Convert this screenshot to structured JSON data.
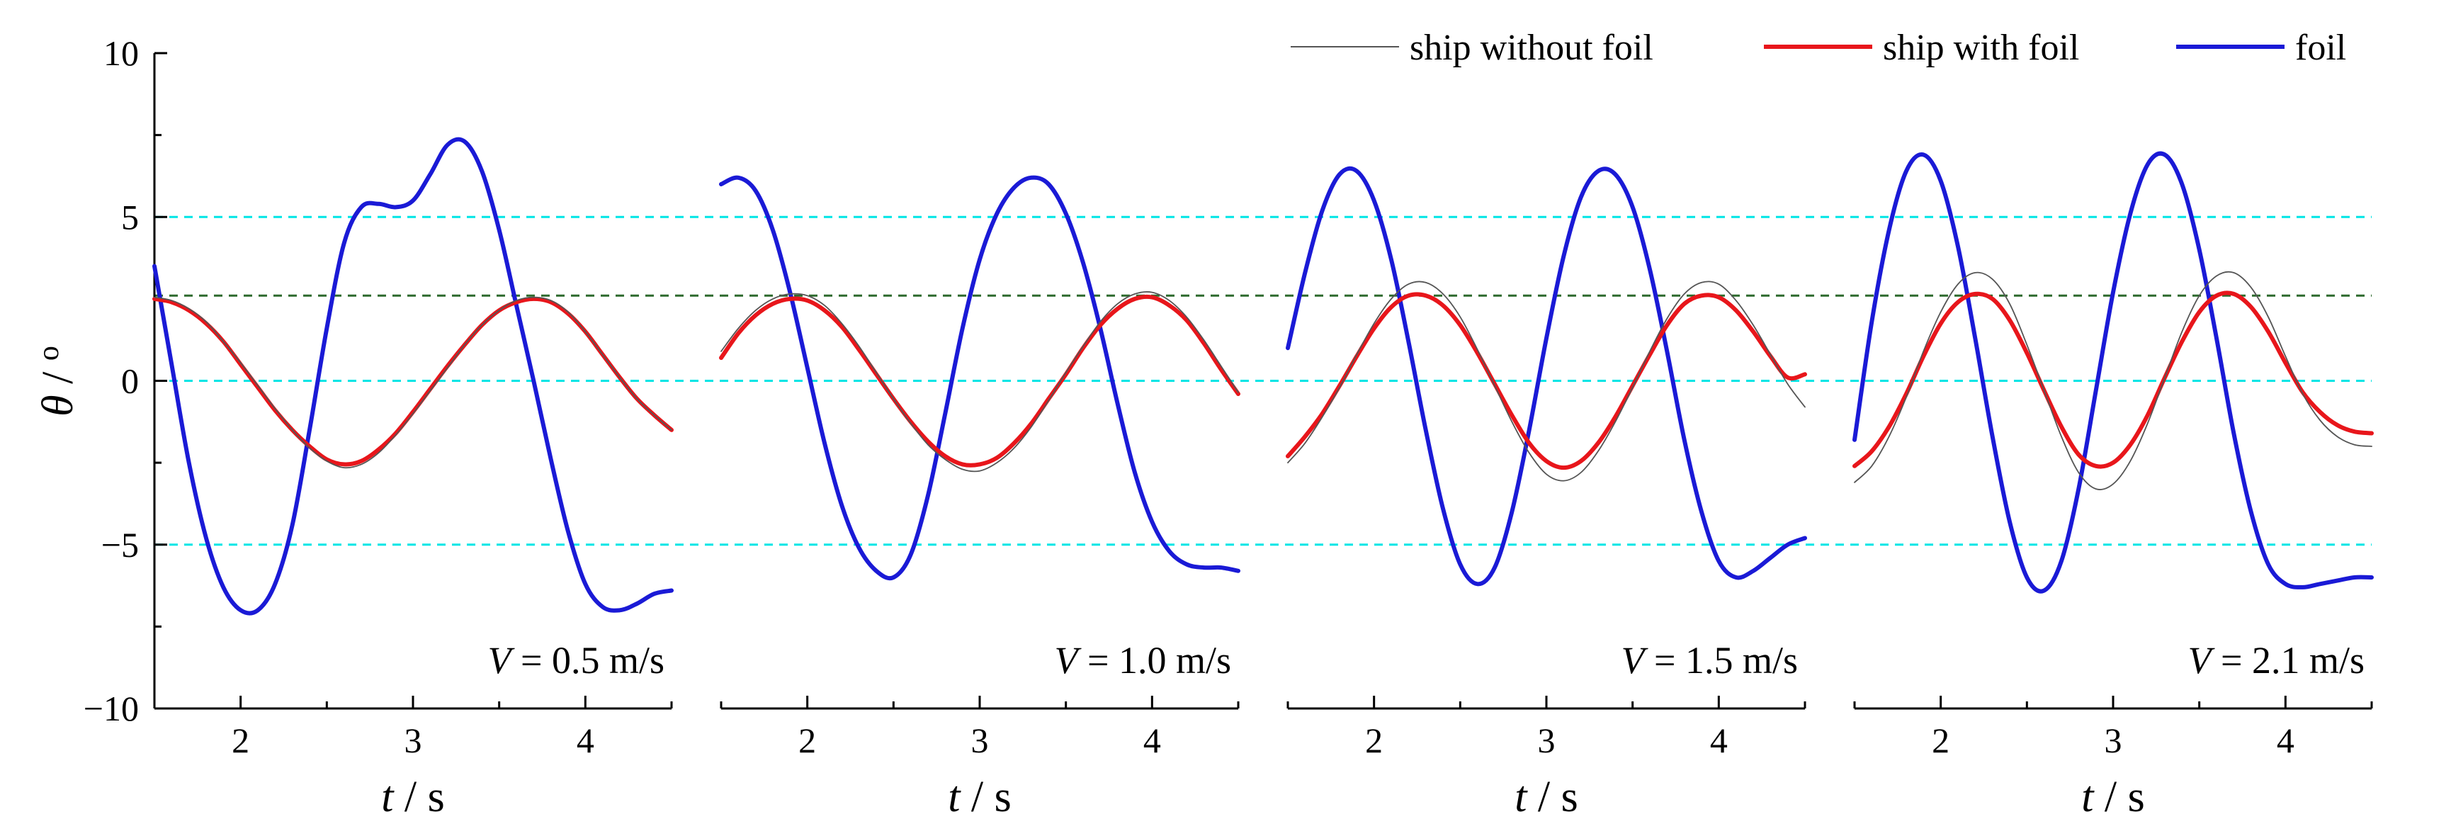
{
  "chart_data": {
    "type": "line",
    "ylabel": {
      "symbol": "θ",
      "unit": "o"
    },
    "xlabel": {
      "symbol": "t",
      "unit": "s"
    },
    "ylim": [
      -10,
      10
    ],
    "yticks": [
      {
        "value": 10,
        "label": "10"
      },
      {
        "value": 5,
        "label": "5"
      },
      {
        "value": 0,
        "label": "0"
      },
      {
        "value": -5,
        "label": "−5"
      },
      {
        "value": -10,
        "label": "−10"
      }
    ],
    "xticks": [
      {
        "value": 2,
        "label": "2"
      },
      {
        "value": 3,
        "label": "3"
      },
      {
        "value": 4,
        "label": "4"
      }
    ],
    "xlim": [
      1.5,
      4.5
    ],
    "reference_lines": [
      {
        "y": 5,
        "color": "#00e5e5",
        "style": "dashed"
      },
      {
        "y": 0,
        "color": "#00e5e5",
        "style": "dashed"
      },
      {
        "y": -5,
        "color": "#00e5e5",
        "style": "dashed"
      },
      {
        "y": 2.6,
        "color": "#2d6a2d",
        "style": "dashed"
      }
    ],
    "legend": {
      "position": "top-right",
      "entries": [
        {
          "label": "ship without foil",
          "color": "#555555"
        },
        {
          "label": "ship with foil",
          "color": "#e8161b"
        },
        {
          "label": "foil",
          "color": "#1a1ad6"
        }
      ]
    },
    "panels": [
      {
        "speed_label": {
          "var": "V",
          "rest": " = 0.5 m/s"
        },
        "series": [
          {
            "name": "ship without foil",
            "color": "#555555",
            "x": [
              1.5,
              1.6,
              1.7,
              1.8,
              1.9,
              2.0,
              2.1,
              2.2,
              2.3,
              2.4,
              2.5,
              2.6,
              2.7,
              2.8,
              2.9,
              3.0,
              3.1,
              3.2,
              3.3,
              3.4,
              3.5,
              3.6,
              3.7,
              3.8,
              3.9,
              4.0,
              4.1,
              4.2,
              4.3,
              4.4,
              4.5
            ],
            "y": [
              2.55,
              2.45,
              2.2,
              1.8,
              1.2,
              0.55,
              -0.15,
              -0.85,
              -1.5,
              -2.05,
              -2.45,
              -2.65,
              -2.55,
              -2.2,
              -1.65,
              -1.0,
              -0.3,
              0.4,
              1.1,
              1.7,
              2.15,
              2.45,
              2.55,
              2.45,
              2.1,
              1.5,
              0.8,
              0.1,
              -0.55,
              -1.05,
              -1.5
            ]
          },
          {
            "name": "ship with foil",
            "color": "#e8161b",
            "x": [
              1.5,
              1.6,
              1.7,
              1.8,
              1.9,
              2.0,
              2.1,
              2.2,
              2.3,
              2.4,
              2.5,
              2.6,
              2.7,
              2.8,
              2.9,
              3.0,
              3.1,
              3.2,
              3.3,
              3.4,
              3.5,
              3.6,
              3.7,
              3.8,
              3.9,
              4.0,
              4.1,
              4.2,
              4.3,
              4.4,
              4.5
            ],
            "y": [
              2.5,
              2.4,
              2.15,
              1.75,
              1.2,
              0.5,
              -0.2,
              -0.9,
              -1.5,
              -2.0,
              -2.4,
              -2.55,
              -2.45,
              -2.1,
              -1.6,
              -0.95,
              -0.25,
              0.45,
              1.1,
              1.7,
              2.15,
              2.4,
              2.5,
              2.4,
              2.05,
              1.5,
              0.8,
              0.1,
              -0.55,
              -1.05,
              -1.5
            ]
          },
          {
            "name": "foil",
            "color": "#1a1ad6",
            "x": [
              1.5,
              1.6,
              1.7,
              1.8,
              1.9,
              2.0,
              2.1,
              2.2,
              2.3,
              2.4,
              2.5,
              2.6,
              2.7,
              2.8,
              2.9,
              3.0,
              3.1,
              3.2,
              3.3,
              3.4,
              3.5,
              3.6,
              3.7,
              3.8,
              3.9,
              4.0,
              4.1,
              4.2,
              4.3,
              4.4,
              4.5
            ],
            "y": [
              3.5,
              0.5,
              -2.5,
              -4.8,
              -6.3,
              -7.0,
              -7.0,
              -6.2,
              -4.4,
              -1.5,
              1.6,
              4.2,
              5.3,
              5.4,
              5.3,
              5.5,
              6.3,
              7.2,
              7.3,
              6.4,
              4.6,
              2.3,
              0.0,
              -2.4,
              -4.6,
              -6.2,
              -6.9,
              -7.0,
              -6.8,
              -6.5,
              -6.4
            ]
          }
        ]
      },
      {
        "speed_label": {
          "var": "V",
          "rest": " = 1.0 m/s"
        },
        "series": [
          {
            "name": "ship without foil",
            "color": "#555555",
            "x": [
              1.5,
              1.6,
              1.7,
              1.8,
              1.9,
              2.0,
              2.1,
              2.2,
              2.3,
              2.4,
              2.5,
              2.6,
              2.7,
              2.8,
              2.9,
              3.0,
              3.1,
              3.2,
              3.3,
              3.4,
              3.5,
              3.6,
              3.7,
              3.8,
              3.9,
              4.0,
              4.1,
              4.2,
              4.3,
              4.4,
              4.5
            ],
            "y": [
              0.9,
              1.6,
              2.15,
              2.5,
              2.65,
              2.6,
              2.3,
              1.75,
              1.05,
              0.25,
              -0.55,
              -1.3,
              -1.95,
              -2.4,
              -2.7,
              -2.75,
              -2.5,
              -2.05,
              -1.4,
              -0.6,
              0.25,
              1.05,
              1.8,
              2.35,
              2.65,
              2.7,
              2.45,
              1.95,
              1.25,
              0.45,
              -0.35
            ]
          },
          {
            "name": "ship with foil",
            "color": "#e8161b",
            "x": [
              1.5,
              1.6,
              1.7,
              1.8,
              1.9,
              2.0,
              2.1,
              2.2,
              2.3,
              2.4,
              2.5,
              2.6,
              2.7,
              2.8,
              2.9,
              3.0,
              3.1,
              3.2,
              3.3,
              3.4,
              3.5,
              3.6,
              3.7,
              3.8,
              3.9,
              4.0,
              4.1,
              4.2,
              4.3,
              4.4,
              4.5
            ],
            "y": [
              0.7,
              1.45,
              2.0,
              2.35,
              2.5,
              2.45,
              2.15,
              1.65,
              0.95,
              0.2,
              -0.55,
              -1.25,
              -1.85,
              -2.3,
              -2.55,
              -2.55,
              -2.35,
              -1.9,
              -1.3,
              -0.55,
              0.2,
              1.0,
              1.7,
              2.2,
              2.5,
              2.55,
              2.3,
              1.85,
              1.15,
              0.35,
              -0.4
            ]
          },
          {
            "name": "foil",
            "color": "#1a1ad6",
            "x": [
              1.5,
              1.6,
              1.7,
              1.8,
              1.9,
              2.0,
              2.1,
              2.2,
              2.3,
              2.4,
              2.5,
              2.6,
              2.7,
              2.8,
              2.9,
              3.0,
              3.1,
              3.2,
              3.3,
              3.4,
              3.5,
              3.6,
              3.7,
              3.8,
              3.9,
              4.0,
              4.1,
              4.2,
              4.3,
              4.4,
              4.5
            ],
            "y": [
              6.0,
              6.2,
              5.8,
              4.6,
              2.7,
              0.4,
              -1.9,
              -3.8,
              -5.1,
              -5.8,
              -6.0,
              -5.3,
              -3.5,
              -1.0,
              1.6,
              3.7,
              5.1,
              5.9,
              6.2,
              6.0,
              5.1,
              3.6,
              1.6,
              -0.7,
              -2.8,
              -4.3,
              -5.2,
              -5.6,
              -5.7,
              -5.7,
              -5.8
            ]
          }
        ]
      },
      {
        "speed_label": {
          "var": "V",
          "rest": " = 1.5 m/s"
        },
        "series": [
          {
            "name": "ship without foil",
            "color": "#555555",
            "x": [
              1.5,
              1.6,
              1.7,
              1.8,
              1.9,
              2.0,
              2.1,
              2.2,
              2.3,
              2.4,
              2.5,
              2.6,
              2.7,
              2.8,
              2.9,
              3.0,
              3.1,
              3.2,
              3.3,
              3.4,
              3.5,
              3.6,
              3.7,
              3.8,
              3.9,
              4.0,
              4.1,
              4.2,
              4.3,
              4.4,
              4.5
            ],
            "y": [
              -2.5,
              -1.9,
              -1.1,
              -0.2,
              0.8,
              1.75,
              2.5,
              2.95,
              3.0,
              2.65,
              1.95,
              0.95,
              -0.15,
              -1.25,
              -2.2,
              -2.85,
              -3.05,
              -2.8,
              -2.15,
              -1.25,
              -0.2,
              0.9,
              1.9,
              2.65,
              3.0,
              2.95,
              2.45,
              1.7,
              0.8,
              -0.1,
              -0.8
            ]
          },
          {
            "name": "ship with foil",
            "color": "#e8161b",
            "x": [
              1.5,
              1.6,
              1.7,
              1.8,
              1.9,
              2.0,
              2.1,
              2.2,
              2.3,
              2.4,
              2.5,
              2.6,
              2.7,
              2.8,
              2.9,
              3.0,
              3.1,
              3.2,
              3.3,
              3.4,
              3.5,
              3.6,
              3.7,
              3.8,
              3.9,
              4.0,
              4.1,
              4.2,
              4.3,
              4.4,
              4.5
            ],
            "y": [
              -2.3,
              -1.7,
              -1.0,
              -0.15,
              0.75,
              1.6,
              2.25,
              2.6,
              2.6,
              2.3,
              1.7,
              0.85,
              -0.1,
              -1.05,
              -1.9,
              -2.45,
              -2.65,
              -2.45,
              -1.9,
              -1.1,
              -0.15,
              0.8,
              1.7,
              2.35,
              2.6,
              2.55,
              2.15,
              1.5,
              0.75,
              0.1,
              0.2
            ]
          },
          {
            "name": "foil",
            "color": "#1a1ad6",
            "x": [
              1.5,
              1.6,
              1.7,
              1.8,
              1.9,
              2.0,
              2.1,
              2.2,
              2.3,
              2.4,
              2.5,
              2.6,
              2.7,
              2.8,
              2.9,
              3.0,
              3.1,
              3.2,
              3.3,
              3.4,
              3.5,
              3.6,
              3.7,
              3.8,
              3.9,
              4.0,
              4.1,
              4.2,
              4.3,
              4.4,
              4.5
            ],
            "y": [
              1.0,
              3.3,
              5.2,
              6.3,
              6.4,
              5.5,
              3.7,
              1.2,
              -1.5,
              -3.9,
              -5.6,
              -6.2,
              -5.7,
              -4.0,
              -1.5,
              1.3,
              3.8,
              5.6,
              6.4,
              6.3,
              5.3,
              3.4,
              0.9,
              -1.8,
              -4.0,
              -5.5,
              -6.0,
              -5.8,
              -5.4,
              -5.0,
              -4.8
            ]
          }
        ]
      },
      {
        "speed_label": {
          "var": "V",
          "rest": " = 2.1 m/s"
        },
        "series": [
          {
            "name": "ship without foil",
            "color": "#555555",
            "x": [
              1.5,
              1.6,
              1.7,
              1.8,
              1.9,
              2.0,
              2.1,
              2.2,
              2.3,
              2.4,
              2.5,
              2.6,
              2.7,
              2.8,
              2.9,
              3.0,
              3.1,
              3.2,
              3.3,
              3.4,
              3.5,
              3.6,
              3.7,
              3.8,
              3.9,
              4.0,
              4.1,
              4.2,
              4.3,
              4.4,
              4.5
            ],
            "y": [
              -3.1,
              -2.6,
              -1.7,
              -0.5,
              0.9,
              2.1,
              2.95,
              3.3,
              3.1,
              2.35,
              1.1,
              -0.3,
              -1.7,
              -2.8,
              -3.3,
              -3.15,
              -2.45,
              -1.3,
              0.1,
              1.5,
              2.6,
              3.2,
              3.3,
              2.85,
              1.95,
              0.75,
              -0.4,
              -1.2,
              -1.7,
              -1.95,
              -2.0
            ]
          },
          {
            "name": "ship with foil",
            "color": "#e8161b",
            "x": [
              1.5,
              1.6,
              1.7,
              1.8,
              1.9,
              2.0,
              2.1,
              2.2,
              2.3,
              2.4,
              2.5,
              2.6,
              2.7,
              2.8,
              2.9,
              3.0,
              3.1,
              3.2,
              3.3,
              3.4,
              3.5,
              3.6,
              3.7,
              3.8,
              3.9,
              4.0,
              4.1,
              4.2,
              4.3,
              4.4,
              4.5
            ],
            "y": [
              -2.6,
              -2.15,
              -1.4,
              -0.4,
              0.75,
              1.75,
              2.4,
              2.65,
              2.5,
              1.85,
              0.85,
              -0.3,
              -1.4,
              -2.25,
              -2.6,
              -2.5,
              -1.95,
              -1.05,
              0.1,
              1.2,
              2.1,
              2.6,
              2.65,
              2.25,
              1.5,
              0.55,
              -0.35,
              -0.95,
              -1.35,
              -1.55,
              -1.6
            ]
          },
          {
            "name": "foil",
            "color": "#1a1ad6",
            "x": [
              1.5,
              1.6,
              1.7,
              1.8,
              1.9,
              2.0,
              2.1,
              2.2,
              2.3,
              2.4,
              2.5,
              2.6,
              2.7,
              2.8,
              2.9,
              3.0,
              3.1,
              3.2,
              3.3,
              3.4,
              3.5,
              3.6,
              3.7,
              3.8,
              3.9,
              4.0,
              4.1,
              4.2,
              4.3,
              4.4,
              4.5
            ],
            "y": [
              -1.8,
              1.8,
              4.6,
              6.4,
              6.9,
              6.1,
              4.1,
              1.3,
              -1.7,
              -4.3,
              -6.0,
              -6.4,
              -5.5,
              -3.3,
              -0.3,
              2.7,
              5.1,
              6.6,
              6.9,
              6.0,
              4.0,
              1.3,
              -1.6,
              -4.0,
              -5.6,
              -6.2,
              -6.3,
              -6.2,
              -6.1,
              -6.0,
              -6.0
            ]
          }
        ]
      }
    ]
  }
}
